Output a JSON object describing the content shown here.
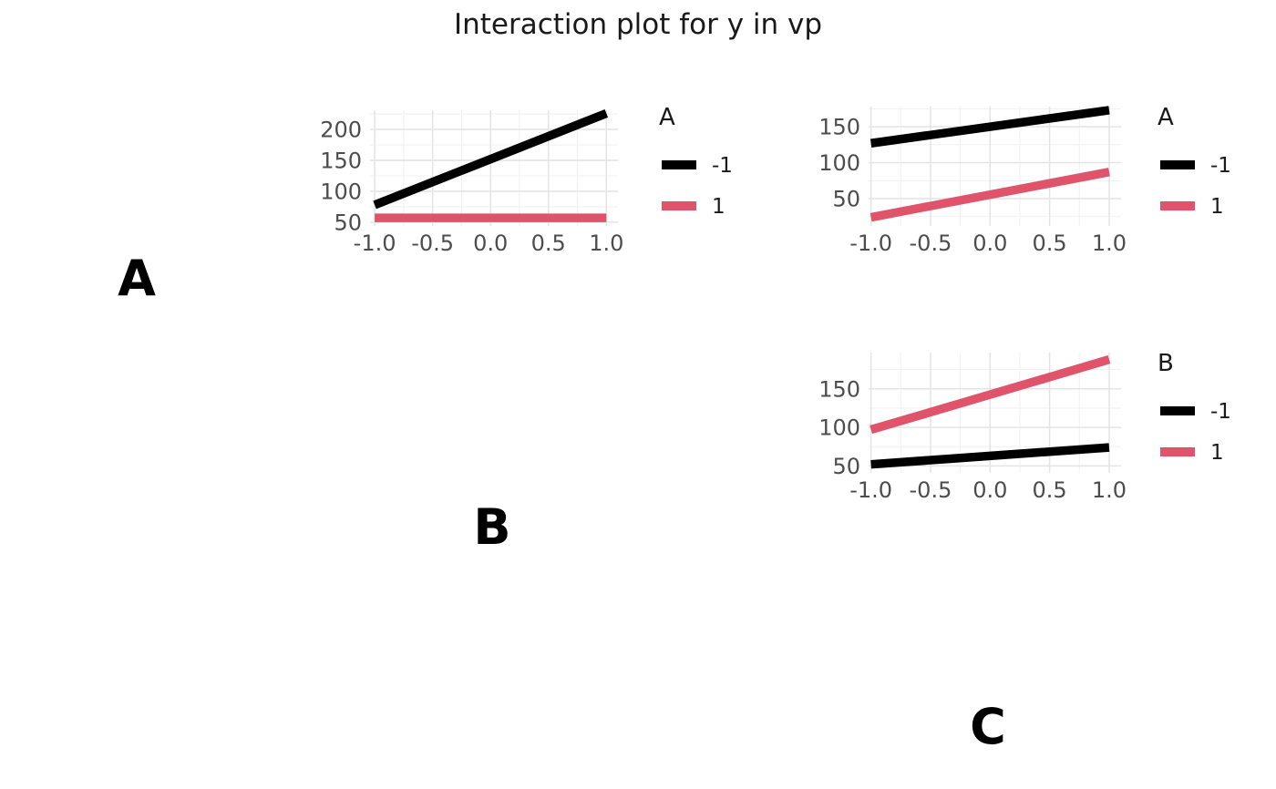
{
  "title": "Interaction plot for y in vp",
  "viewport_labels": [
    {
      "text": "A"
    },
    {
      "text": "B"
    },
    {
      "text": "C"
    }
  ],
  "colors": {
    "background": "#FFFFFF",
    "grid_major": "#E4E4E4",
    "grid_minor": "#F1F1F1",
    "axis_text": "#4D4D4D",
    "legend_text": "#1A1A1A",
    "title_text": "#1A1A1A",
    "series_black": "#000000",
    "series_pink": "#DF536B"
  },
  "chart_data": [
    {
      "type": "line",
      "position": "top-left",
      "legend_title": "A",
      "legend_position": "right",
      "grid": true,
      "x": [
        -1,
        1
      ],
      "x_tick_values": [
        -1,
        -0.5,
        0,
        0.5,
        1
      ],
      "x_tick_labels": [
        "-1.0",
        "-0.5",
        "0.0",
        "0.5",
        "1.0"
      ],
      "y_tick_values": [
        50,
        100,
        150,
        200
      ],
      "y_tick_labels": [
        "50",
        "100",
        "150",
        "200"
      ],
      "xlim": [
        -1.04,
        1.1
      ],
      "ylim": [
        44,
        231
      ],
      "series": [
        {
          "name": "-1",
          "color": "#000000",
          "values": [
            78,
            226
          ]
        },
        {
          "name": "1",
          "color": "#DF536B",
          "values": [
            57,
            57
          ]
        }
      ]
    },
    {
      "type": "line",
      "position": "top-right",
      "legend_title": "A",
      "legend_position": "right",
      "grid": true,
      "x": [
        -1,
        1
      ],
      "x_tick_values": [
        -1,
        -0.5,
        0,
        0.5,
        1
      ],
      "x_tick_labels": [
        "-1.0",
        "-0.5",
        "0.0",
        "0.5",
        "1.0"
      ],
      "y_tick_values": [
        50,
        100,
        150
      ],
      "y_tick_labels": [
        "50",
        "100",
        "150"
      ],
      "xlim": [
        -1.02,
        1.1
      ],
      "ylim": [
        12,
        178
      ],
      "series": [
        {
          "name": "-1",
          "color": "#000000",
          "values": [
            127,
            173
          ]
        },
        {
          "name": "1",
          "color": "#DF536B",
          "values": [
            24,
            87
          ]
        }
      ]
    },
    {
      "type": "line",
      "position": "middle-right",
      "legend_title": "B",
      "legend_position": "right",
      "grid": true,
      "x": [
        -1,
        1
      ],
      "x_tick_values": [
        -1,
        -0.5,
        0,
        0.5,
        1
      ],
      "x_tick_labels": [
        "-1.0",
        "-0.5",
        "0.0",
        "0.5",
        "1.0"
      ],
      "y_tick_values": [
        50,
        100,
        150
      ],
      "y_tick_labels": [
        "50",
        "100",
        "150"
      ],
      "xlim": [
        -1.02,
        1.1
      ],
      "ylim": [
        41,
        197
      ],
      "series": [
        {
          "name": "-1",
          "color": "#000000",
          "values": [
            52,
            74
          ]
        },
        {
          "name": "1",
          "color": "#DF536B",
          "values": [
            97,
            188
          ]
        }
      ]
    }
  ]
}
